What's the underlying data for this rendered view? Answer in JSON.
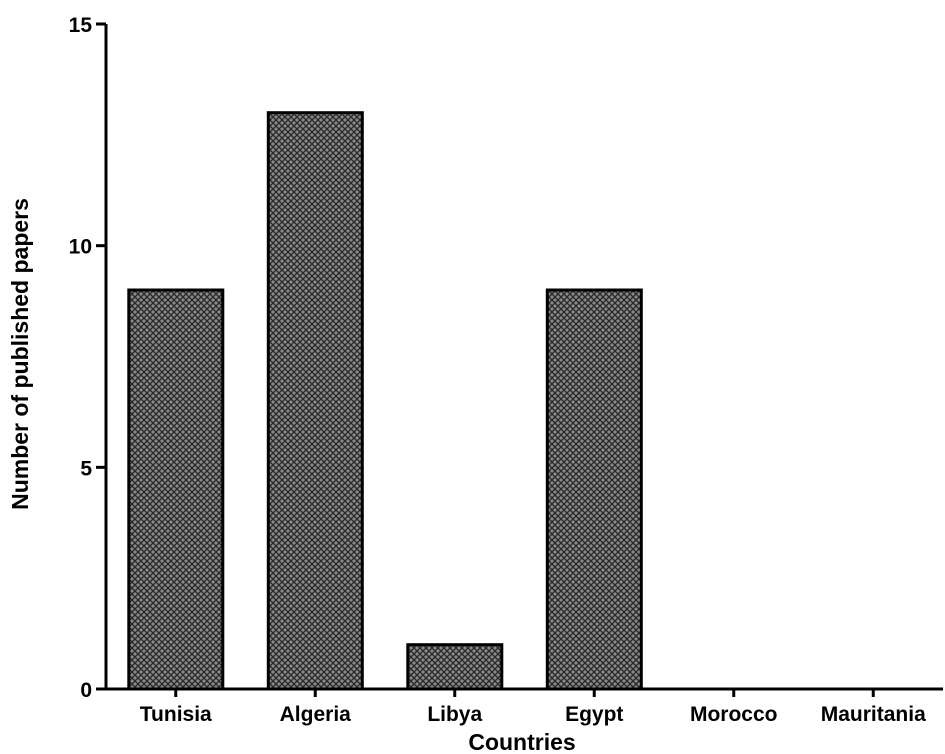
{
  "chart_data": {
    "type": "bar",
    "categories": [
      "Tunisia",
      "Algeria",
      "Libya",
      "Egypt",
      "Morocco",
      "Mauritania"
    ],
    "values": [
      9,
      13,
      1,
      9,
      0,
      0
    ],
    "title": "",
    "xlabel": "Countries",
    "ylabel": "Number of published papers",
    "ylim": [
      0,
      15
    ],
    "yticks": [
      0,
      5,
      10,
      15
    ],
    "grid": false,
    "legend": "none",
    "bar_fill": "cross-hatch",
    "bar_color": "#555555",
    "edge_color": "#000000"
  }
}
